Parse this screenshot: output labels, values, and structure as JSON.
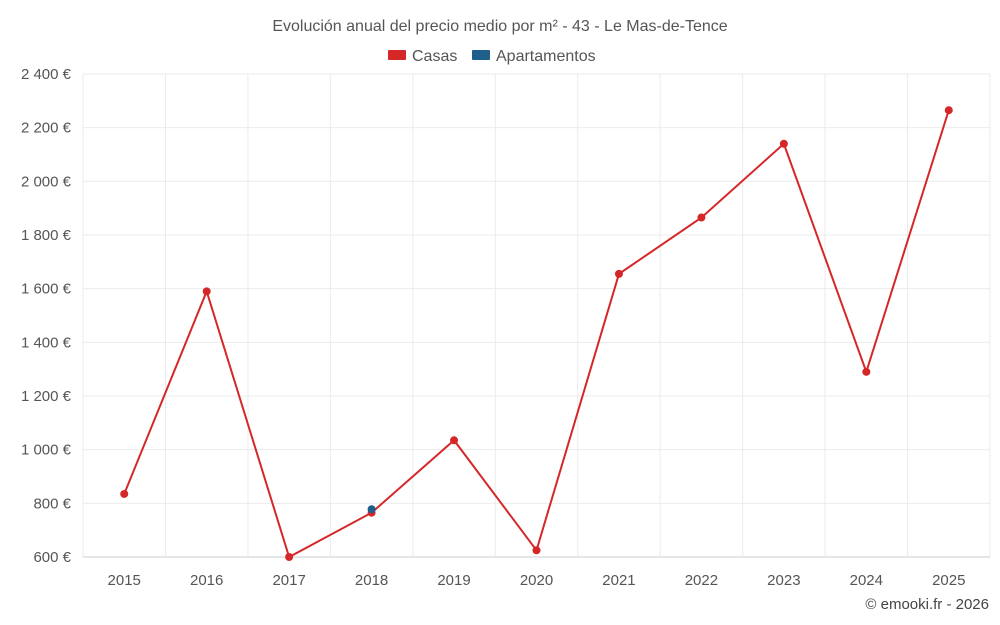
{
  "chart_data": {
    "type": "line",
    "title": "Evolución anual del precio medio por m² - 43 - Le Mas-de-Tence",
    "categories": [
      "2015",
      "2016",
      "2017",
      "2018",
      "2019",
      "2020",
      "2021",
      "2022",
      "2023",
      "2024",
      "2025"
    ],
    "y_ticks": [
      "600 €",
      "800 €",
      "1 000 €",
      "1 200 €",
      "1 400 €",
      "1 600 €",
      "1 800 €",
      "2 000 €",
      "2 200 €",
      "2 400 €"
    ],
    "y_tick_values": [
      600,
      800,
      1000,
      1200,
      1400,
      1600,
      1800,
      2000,
      2200,
      2400
    ],
    "ylim": [
      600,
      2400
    ],
    "xlabel": "",
    "ylabel": "",
    "grid": true,
    "legend_position": "top-center",
    "series": [
      {
        "name": "Casas",
        "color": "#d62728",
        "values": [
          835,
          1590,
          600,
          765,
          1035,
          625,
          1655,
          1865,
          2140,
          1290,
          2265
        ]
      },
      {
        "name": "Apartamentos",
        "color": "#1f5f8b",
        "values": [
          null,
          null,
          null,
          778,
          null,
          null,
          null,
          null,
          null,
          null,
          null
        ]
      }
    ]
  },
  "credit": "© emooki.fr - 2026"
}
